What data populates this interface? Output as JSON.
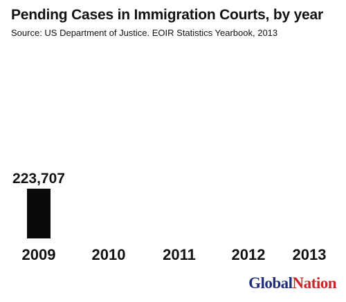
{
  "chart_data": {
    "type": "bar",
    "title": "Pending Cases in Immigration Courts, by year",
    "subtitle": "Source: US Department of Justice. EOIR Statistics Yearbook, 2013",
    "categories": [
      "2009",
      "2010",
      "2011",
      "2012",
      "2013"
    ],
    "values": [
      223707,
      null,
      null,
      null,
      null
    ],
    "value_labels": [
      "223,707",
      "",
      "",
      "",
      ""
    ],
    "bar_color": "#0a0a0a",
    "xlabel": "",
    "ylabel": "",
    "grid": false,
    "legend": "none"
  },
  "logo": {
    "part1": "Global",
    "part2": "Nation",
    "color1": "#1f2d7a",
    "color2": "#c62828"
  }
}
